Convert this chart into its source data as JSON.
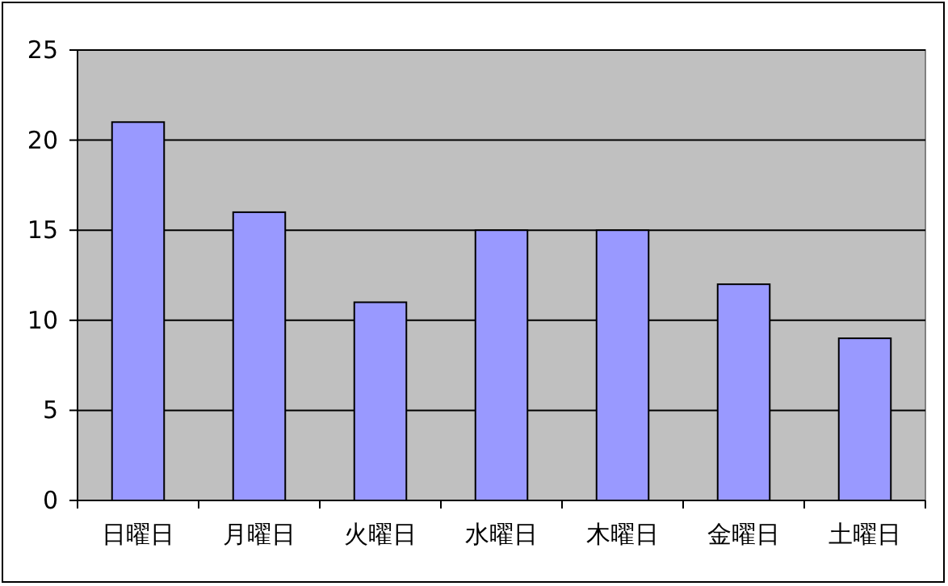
{
  "chart_data": {
    "type": "bar",
    "categories": [
      "日曜日",
      "月曜日",
      "火曜日",
      "水曜日",
      "木曜日",
      "金曜日",
      "土曜日"
    ],
    "values": [
      21,
      16,
      11,
      15,
      15,
      12,
      9
    ],
    "color": "#9999ff",
    "ylim": [
      0,
      25
    ],
    "yticks": [
      0,
      5,
      10,
      15,
      20,
      25
    ],
    "grid": "y"
  }
}
